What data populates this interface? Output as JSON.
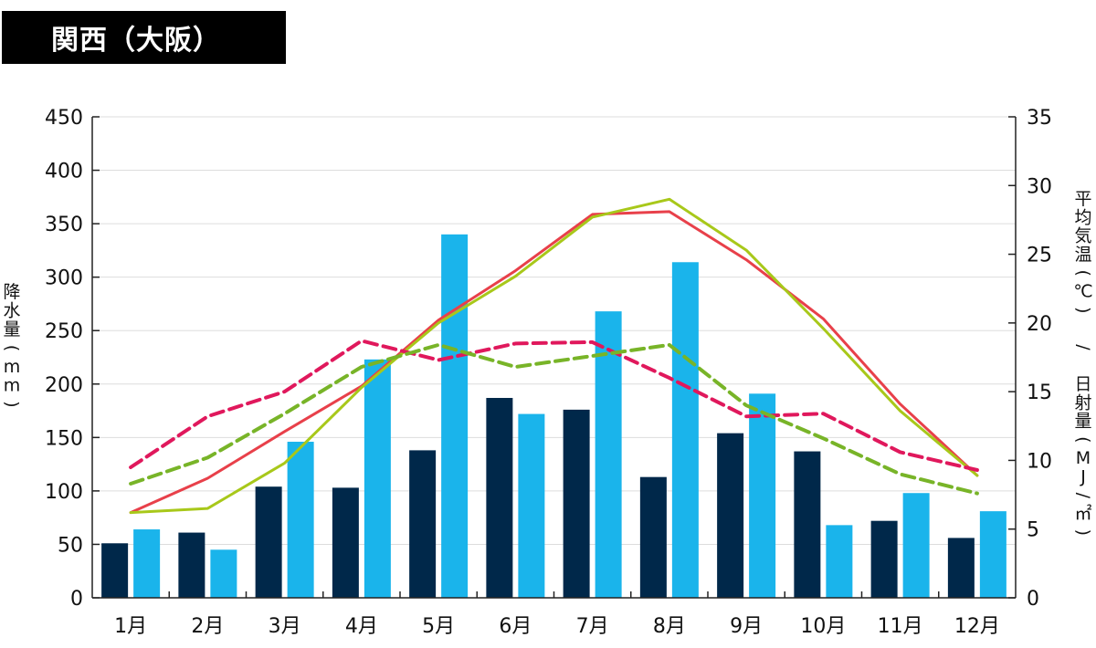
{
  "title": "関西（大阪）",
  "colors": {
    "bar_dark": "#00284a",
    "bar_light": "#1ab4eb",
    "line_red": "#e8404a",
    "line_green": "#a8c81a",
    "dash_red": "#e0185c",
    "dash_green": "#78b428",
    "axis": "#222222",
    "grid": "#dddddd"
  },
  "chart_data": {
    "type": "bar",
    "categories": [
      "1月",
      "2月",
      "3月",
      "4月",
      "5月",
      "6月",
      "7月",
      "8月",
      "9月",
      "10月",
      "11月",
      "12月"
    ],
    "left_axis": {
      "label": "降水量(mm)",
      "ylim": [
        0,
        450
      ],
      "ticks": [
        "0",
        "50",
        "100",
        "150",
        "200",
        "250",
        "300",
        "350",
        "400",
        "450"
      ]
    },
    "right_axis": {
      "label": "平均気温(℃) / 日射量(MJ/㎡)",
      "ylim": [
        0,
        35
      ],
      "ticks": [
        "0",
        "5",
        "10",
        "15",
        "20",
        "25",
        "30",
        "35"
      ]
    },
    "grid": true,
    "legend": "none",
    "bars": [
      {
        "name": "",
        "axis": "left",
        "color_key": "bar_dark",
        "values": [
          51,
          61,
          104,
          103,
          138,
          187,
          176,
          113,
          154,
          137,
          72,
          56
        ]
      },
      {
        "name": "",
        "axis": "left",
        "color_key": "bar_light",
        "values": [
          64,
          45,
          146,
          223,
          340,
          172,
          268,
          314,
          191,
          68,
          98,
          81
        ]
      }
    ],
    "lines": [
      {
        "name": "",
        "axis": "right",
        "color_key": "line_red",
        "dashed": false,
        "values": [
          6.2,
          8.7,
          12.1,
          15.4,
          20.2,
          23.8,
          27.9,
          28.1,
          24.6,
          20.3,
          14.1,
          8.9
        ]
      },
      {
        "name": "",
        "axis": "right",
        "color_key": "line_green",
        "dashed": false,
        "values": [
          6.2,
          6.5,
          9.8,
          15.3,
          20.0,
          23.4,
          27.7,
          29.0,
          25.3,
          19.6,
          13.6,
          8.9
        ]
      },
      {
        "name": "",
        "axis": "right",
        "color_key": "dash_red",
        "dashed": true,
        "values": [
          9.5,
          13.2,
          15.0,
          18.7,
          17.3,
          18.5,
          18.6,
          16.0,
          13.2,
          13.4,
          10.6,
          9.3
        ]
      },
      {
        "name": "",
        "axis": "right",
        "color_key": "dash_green",
        "dashed": true,
        "values": [
          8.3,
          10.2,
          13.4,
          16.8,
          18.4,
          16.8,
          17.6,
          18.4,
          14.0,
          11.6,
          9.0,
          7.6
        ]
      }
    ]
  }
}
